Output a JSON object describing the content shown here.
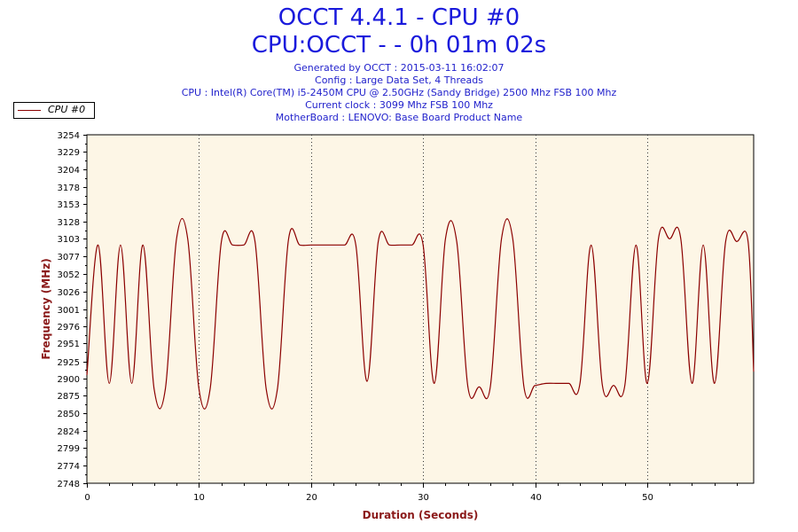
{
  "header": {
    "title": "OCCT 4.4.1 - CPU #0",
    "subtitle": "CPU:OCCT -  - 0h 01m 02s",
    "generated": "Generated by OCCT : 2015-03-11 16:02:07",
    "config": "Config : Large Data Set, 4 Threads",
    "cpu": "CPU : Intel(R) Core(TM) i5-2450M CPU @ 2.50GHz (Sandy Bridge) 2500 Mhz FSB 100 Mhz",
    "clock": "Current clock : 3099 Mhz FSB 100 Mhz",
    "motherboard": "MotherBoard : LENOVO: Base Board Product Name"
  },
  "legend": {
    "label": "CPU #0"
  },
  "colors": {
    "line": "#8b0000",
    "plot_bg": "#fdf6e6",
    "title": "#1a1adc",
    "axis_label": "#8b1a1a"
  },
  "chart_data": {
    "type": "line",
    "xlabel": "Duration (Seconds)",
    "ylabel": "Frequency (MHz)",
    "xlim": [
      0,
      59.5
    ],
    "ylim": [
      2748,
      3254
    ],
    "x_ticks": [
      0,
      10,
      20,
      30,
      40,
      50
    ],
    "y_ticks": [
      2748,
      2774,
      2799,
      2824,
      2850,
      2875,
      2900,
      2925,
      2951,
      2976,
      3001,
      3026,
      3052,
      3077,
      3103,
      3128,
      3153,
      3178,
      3204,
      3229,
      3254
    ],
    "grid": "vertical dotted",
    "legend_position": "top-left",
    "series": [
      {
        "name": "CPU #0",
        "x": [
          0,
          1,
          2,
          3,
          4,
          5,
          6,
          7,
          8,
          9,
          10,
          11,
          12,
          13,
          14,
          15,
          16,
          17,
          18,
          19,
          20,
          21,
          22,
          23,
          24,
          25,
          26,
          27,
          28,
          29,
          30,
          31,
          32,
          33,
          34,
          35,
          36,
          37,
          38,
          39,
          40,
          41,
          42,
          43,
          44,
          45,
          46,
          47,
          48,
          49,
          50,
          51,
          52,
          53,
          54,
          55,
          56,
          57,
          58,
          59,
          59.5
        ],
        "y": [
          2905,
          3094,
          2893,
          3094,
          2893,
          3094,
          2885,
          2885,
          3103,
          3103,
          2885,
          2885,
          3099,
          3094,
          3094,
          3099,
          2885,
          2885,
          3103,
          3094,
          3094,
          3094,
          3094,
          3094,
          3094,
          2896,
          3099,
          3094,
          3094,
          3094,
          3094,
          2893,
          3103,
          3099,
          2888,
          2888,
          2888,
          3103,
          3103,
          2888,
          2890,
          2893,
          2893,
          2893,
          2893,
          3094,
          2890,
          2890,
          2890,
          3094,
          2893,
          3103,
          3103,
          3103,
          2893,
          3094,
          2893,
          3099,
          3099,
          3099,
          2910
        ]
      }
    ]
  }
}
